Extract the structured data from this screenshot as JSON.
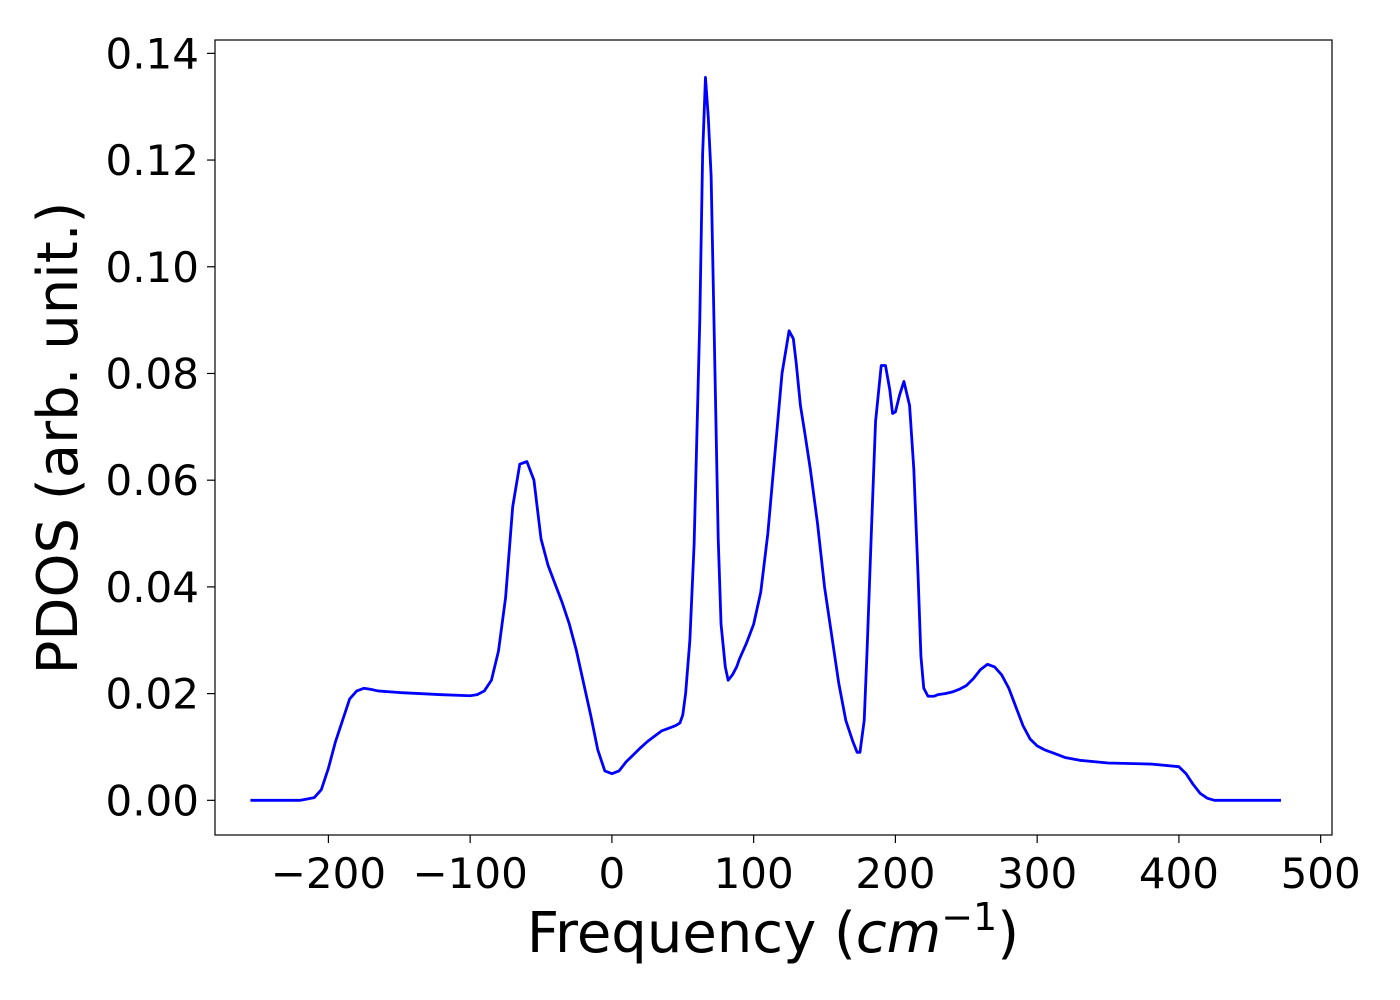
{
  "chart_data": {
    "type": "line",
    "title": "",
    "xlabel_prefix": "Frequency (",
    "xlabel_unit": "cm",
    "xlabel_exp": "−1",
    "xlabel_suffix": ")",
    "ylabel": "PDOS (arb. unit.)",
    "xlim": [
      -280,
      508
    ],
    "ylim": [
      -0.0065,
      0.1425
    ],
    "xticks": [
      -200,
      -100,
      0,
      100,
      200,
      300,
      400,
      500
    ],
    "xtick_labels": [
      "−200",
      "−100",
      "0",
      "100",
      "200",
      "300",
      "400",
      "500"
    ],
    "yticks": [
      0.0,
      0.02,
      0.04,
      0.06,
      0.08,
      0.1,
      0.12,
      0.14
    ],
    "ytick_labels": [
      "0.00",
      "0.02",
      "0.04",
      "0.06",
      "0.08",
      "0.10",
      "0.12",
      "0.14"
    ],
    "grid": false,
    "series": [
      {
        "color": "#0000ff",
        "x": [
          -255,
          -220,
          -210,
          -205,
          -200,
          -195,
          -190,
          -185,
          -180,
          -175,
          -170,
          -165,
          -150,
          -120,
          -100,
          -95,
          -90,
          -85,
          -80,
          -75,
          -70,
          -65,
          -60,
          -55,
          -50,
          -45,
          -40,
          -35,
          -30,
          -25,
          -20,
          -15,
          -10,
          -5,
          0,
          5,
          10,
          15,
          20,
          25,
          30,
          35,
          40,
          45,
          48,
          50,
          52,
          55,
          58,
          62,
          64,
          66,
          68,
          70,
          72,
          75,
          77,
          80,
          82,
          85,
          88,
          90,
          95,
          100,
          105,
          110,
          115,
          120,
          125,
          128,
          130,
          133,
          136,
          140,
          145,
          150,
          155,
          160,
          165,
          170,
          173,
          175,
          178,
          180,
          183,
          186,
          190,
          193,
          196,
          198,
          200,
          203,
          206,
          210,
          213,
          216,
          218,
          220,
          223,
          227,
          230,
          235,
          240,
          245,
          250,
          255,
          260,
          265,
          270,
          275,
          280,
          285,
          290,
          295,
          300,
          305,
          310,
          315,
          320,
          330,
          350,
          380,
          400,
          405,
          410,
          415,
          420,
          425,
          430,
          472
        ],
        "y": [
          0.0,
          0.0,
          0.0005,
          0.002,
          0.006,
          0.011,
          0.015,
          0.019,
          0.0205,
          0.021,
          0.0208,
          0.0205,
          0.0202,
          0.0198,
          0.0196,
          0.0198,
          0.0205,
          0.0225,
          0.028,
          0.038,
          0.055,
          0.063,
          0.0635,
          0.06,
          0.049,
          0.044,
          0.0405,
          0.037,
          0.033,
          0.028,
          0.022,
          0.016,
          0.0095,
          0.0055,
          0.005,
          0.0055,
          0.0072,
          0.0085,
          0.0098,
          0.011,
          0.012,
          0.013,
          0.0135,
          0.014,
          0.0145,
          0.016,
          0.02,
          0.03,
          0.048,
          0.09,
          0.121,
          0.1355,
          0.128,
          0.117,
          0.09,
          0.049,
          0.033,
          0.025,
          0.0225,
          0.0235,
          0.025,
          0.0265,
          0.0295,
          0.033,
          0.039,
          0.05,
          0.065,
          0.08,
          0.088,
          0.0865,
          0.082,
          0.074,
          0.069,
          0.062,
          0.052,
          0.04,
          0.031,
          0.022,
          0.015,
          0.011,
          0.009,
          0.009,
          0.015,
          0.028,
          0.05,
          0.071,
          0.0815,
          0.0815,
          0.077,
          0.0725,
          0.0728,
          0.076,
          0.0785,
          0.074,
          0.062,
          0.042,
          0.027,
          0.021,
          0.0195,
          0.0195,
          0.0198,
          0.02,
          0.0203,
          0.0208,
          0.0215,
          0.0228,
          0.0245,
          0.0255,
          0.025,
          0.0235,
          0.021,
          0.0175,
          0.014,
          0.0115,
          0.0102,
          0.0095,
          0.009,
          0.0085,
          0.008,
          0.0075,
          0.007,
          0.0068,
          0.0063,
          0.005,
          0.003,
          0.0013,
          0.0004,
          0.0,
          0.0,
          0.0
        ]
      }
    ]
  }
}
